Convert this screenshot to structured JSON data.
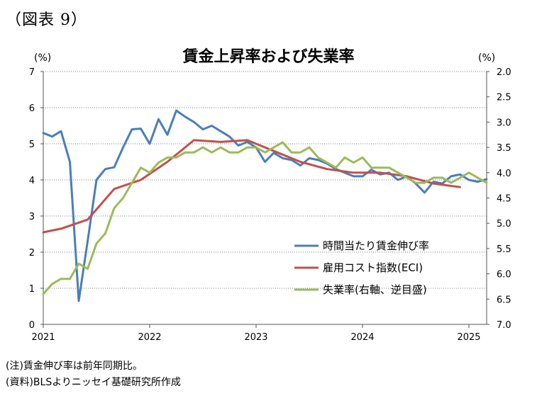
{
  "figure_label": "（図表 9）",
  "notes": {
    "note": "(注)賃金伸び率は前年同期比。",
    "source": "(資料)BLSよりニッセイ基礎研究所作成"
  },
  "chart_data": {
    "type": "line",
    "title": "賃金上昇率および失業率",
    "y_left_unit": "(%)",
    "y_right_unit": "(%)",
    "y_left_lim": [
      0,
      7
    ],
    "y_left_ticks": [
      "0",
      "1",
      "2",
      "3",
      "4",
      "5",
      "6",
      "7"
    ],
    "y_right_lim": [
      7.0,
      2.0
    ],
    "y_right_inverted": true,
    "y_right_ticks": [
      "2.0",
      "2.5",
      "3.0",
      "3.5",
      "4.0",
      "4.5",
      "5.0",
      "5.5",
      "6.0",
      "6.5",
      "7.0"
    ],
    "x_ticks": [
      "2021",
      "2022",
      "2023",
      "2024",
      "2025"
    ],
    "x_lim": [
      "2021-01",
      "2025-03"
    ],
    "grid": "horizontal dotted",
    "legend_position": "center-right",
    "series": [
      {
        "name": "時間当たり賃金伸び率",
        "axis": "left",
        "color": "#4a7ebb",
        "x": [
          "2021-01",
          "2021-02",
          "2021-03",
          "2021-04",
          "2021-05",
          "2021-06",
          "2021-07",
          "2021-08",
          "2021-09",
          "2021-10",
          "2021-11",
          "2021-12",
          "2022-01",
          "2022-02",
          "2022-03",
          "2022-04",
          "2022-05",
          "2022-06",
          "2022-07",
          "2022-08",
          "2022-09",
          "2022-10",
          "2022-11",
          "2022-12",
          "2023-01",
          "2023-02",
          "2023-03",
          "2023-04",
          "2023-05",
          "2023-06",
          "2023-07",
          "2023-08",
          "2023-09",
          "2023-10",
          "2023-11",
          "2023-12",
          "2024-01",
          "2024-02",
          "2024-03",
          "2024-04",
          "2024-05",
          "2024-06",
          "2024-07",
          "2024-08",
          "2024-09",
          "2024-10",
          "2024-11",
          "2024-12",
          "2025-01",
          "2025-02",
          "2025-03"
        ],
        "values": [
          5.3,
          5.2,
          5.35,
          4.5,
          0.65,
          2.3,
          4.0,
          4.3,
          4.35,
          4.9,
          5.4,
          5.42,
          5.0,
          5.68,
          5.25,
          5.92,
          5.75,
          5.6,
          5.4,
          5.5,
          5.35,
          5.2,
          4.95,
          5.05,
          4.9,
          4.5,
          4.75,
          4.6,
          4.55,
          4.4,
          4.6,
          4.55,
          4.45,
          4.3,
          4.2,
          4.1,
          4.1,
          4.28,
          4.15,
          4.2,
          4.0,
          4.1,
          3.9,
          3.65,
          3.95,
          3.9,
          4.1,
          4.15,
          4.0,
          3.95,
          4.02
        ]
      },
      {
        "name": "雇用コスト指数(ECI)",
        "axis": "left",
        "color": "#c0504d",
        "x": [
          "2021-01",
          "2021-03",
          "2021-06",
          "2021-09",
          "2021-12",
          "2022-03",
          "2022-06",
          "2022-09",
          "2022-12",
          "2023-03",
          "2023-06",
          "2023-09",
          "2023-12",
          "2024-03",
          "2024-06",
          "2024-09",
          "2024-12"
        ],
        "values": [
          2.55,
          2.65,
          2.9,
          3.75,
          4.0,
          4.5,
          5.1,
          5.05,
          5.1,
          4.8,
          4.5,
          4.3,
          4.2,
          4.2,
          4.1,
          3.9,
          3.8
        ]
      },
      {
        "name": "失業率(右軸、逆目盛)",
        "axis": "right",
        "color": "#9bbb59",
        "x": [
          "2021-01",
          "2021-02",
          "2021-03",
          "2021-04",
          "2021-05",
          "2021-06",
          "2021-07",
          "2021-08",
          "2021-09",
          "2021-10",
          "2021-11",
          "2021-12",
          "2022-01",
          "2022-02",
          "2022-03",
          "2022-04",
          "2022-05",
          "2022-06",
          "2022-07",
          "2022-08",
          "2022-09",
          "2022-10",
          "2022-11",
          "2022-12",
          "2023-01",
          "2023-02",
          "2023-03",
          "2023-04",
          "2023-05",
          "2023-06",
          "2023-07",
          "2023-08",
          "2023-09",
          "2023-10",
          "2023-11",
          "2023-12",
          "2024-01",
          "2024-02",
          "2024-03",
          "2024-04",
          "2024-05",
          "2024-06",
          "2024-07",
          "2024-08",
          "2024-09",
          "2024-10",
          "2024-11",
          "2024-12",
          "2025-01",
          "2025-02",
          "2025-03"
        ],
        "values": [
          6.4,
          6.2,
          6.1,
          6.1,
          5.8,
          5.9,
          5.4,
          5.2,
          4.7,
          4.5,
          4.2,
          3.9,
          4.0,
          3.8,
          3.7,
          3.7,
          3.6,
          3.6,
          3.5,
          3.6,
          3.5,
          3.6,
          3.6,
          3.5,
          3.5,
          3.6,
          3.5,
          3.4,
          3.6,
          3.6,
          3.5,
          3.7,
          3.8,
          3.9,
          3.7,
          3.8,
          3.7,
          3.9,
          3.9,
          3.9,
          4.0,
          4.1,
          4.2,
          4.2,
          4.1,
          4.1,
          4.2,
          4.1,
          4.0,
          4.1,
          4.2
        ]
      }
    ]
  }
}
